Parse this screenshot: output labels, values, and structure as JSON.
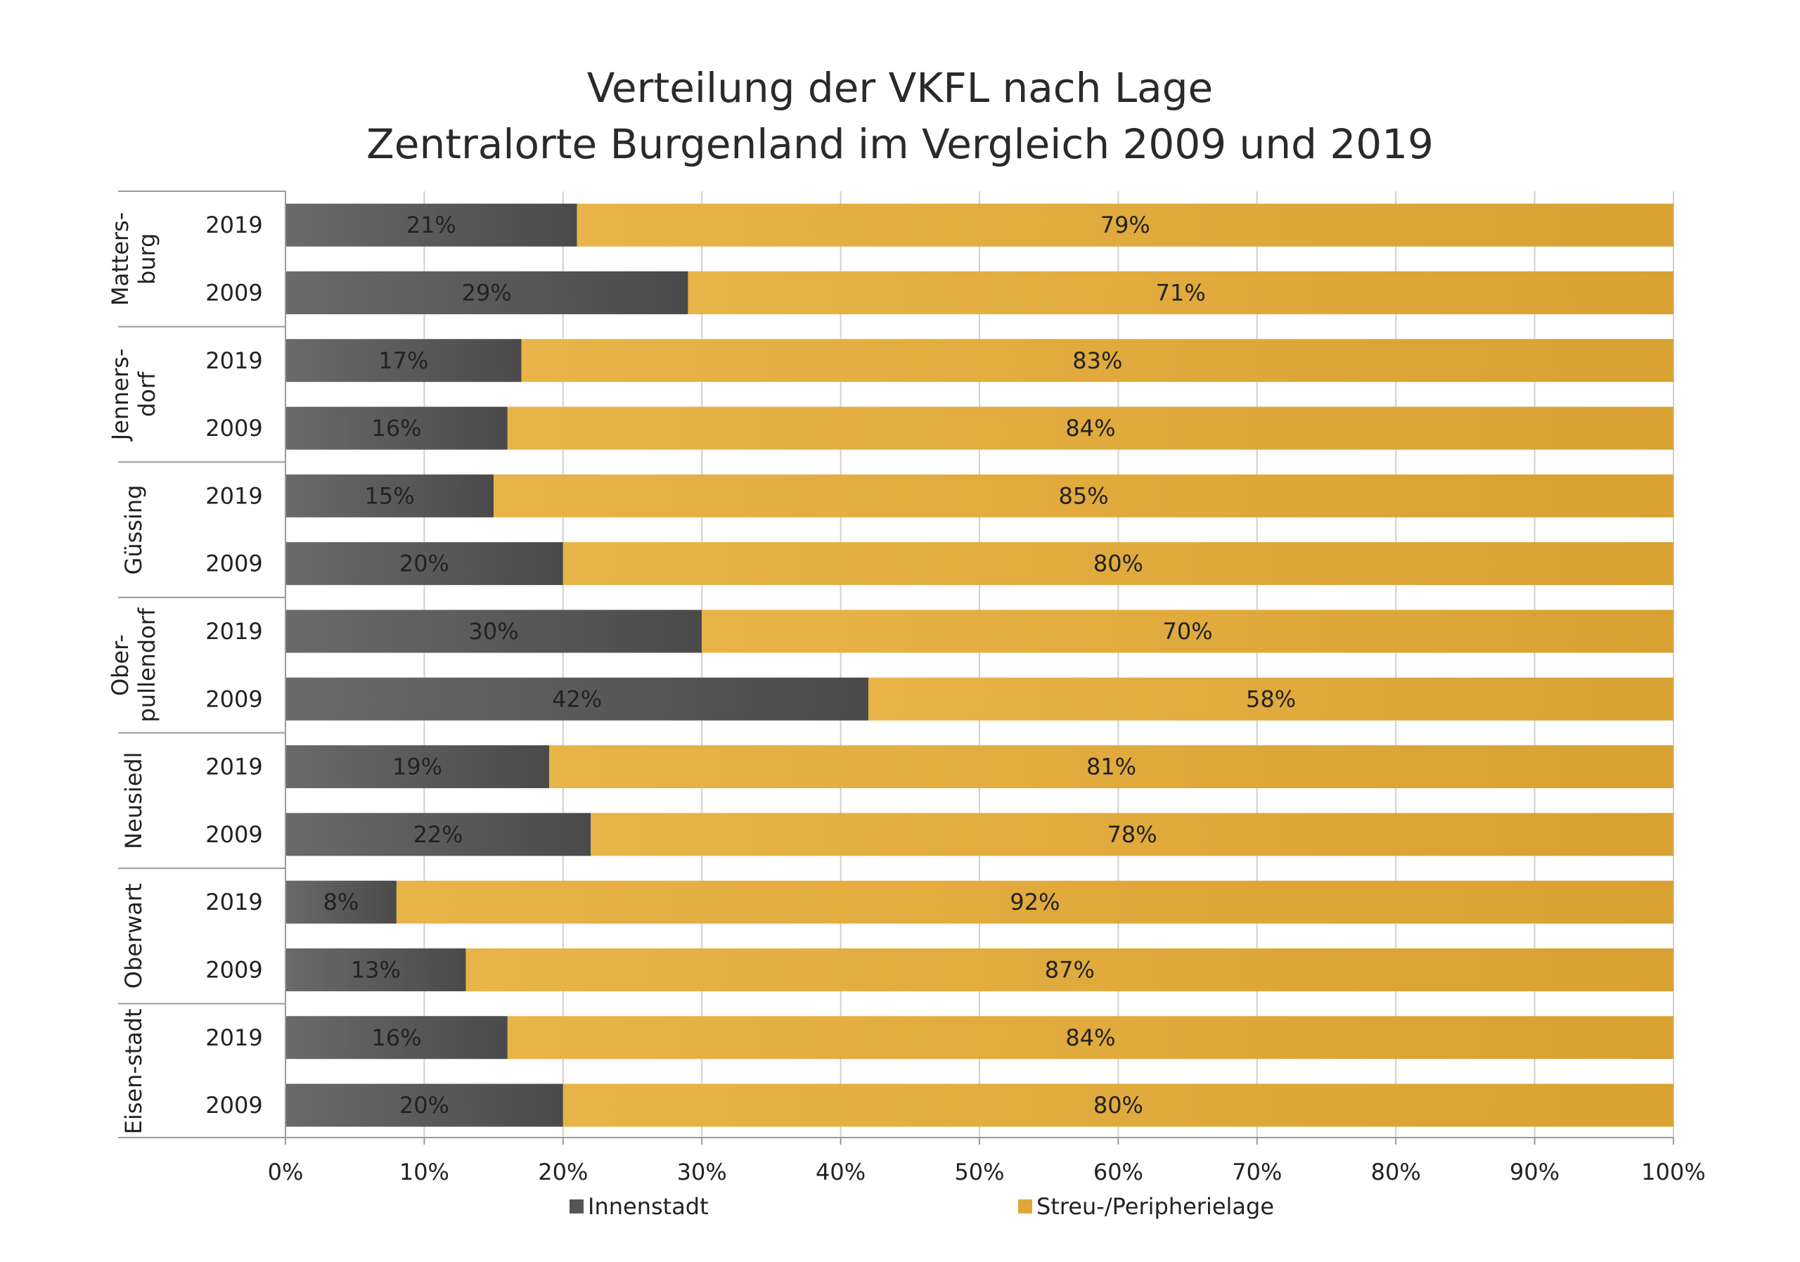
{
  "chart_data": {
    "type": "bar",
    "orientation": "horizontal",
    "stacked": true,
    "title": [
      "Verteilung der VKFL nach Lage",
      "Zentralorte Burgenland im Vergleich 2009 und 2019"
    ],
    "groups": [
      {
        "name": [
          "Matters-",
          "burg"
        ],
        "rows": [
          {
            "year": "2019",
            "innen": 21,
            "streu": 79
          },
          {
            "year": "2009",
            "innen": 29,
            "streu": 71
          }
        ]
      },
      {
        "name": [
          "Jenners-",
          "dorf"
        ],
        "rows": [
          {
            "year": "2019",
            "innen": 17,
            "streu": 83
          },
          {
            "year": "2009",
            "innen": 16,
            "streu": 84
          }
        ]
      },
      {
        "name": [
          "Güssing"
        ],
        "rows": [
          {
            "year": "2019",
            "innen": 15,
            "streu": 85
          },
          {
            "year": "2009",
            "innen": 20,
            "streu": 80
          }
        ]
      },
      {
        "name": [
          "Ober-",
          "pullendorf"
        ],
        "rows": [
          {
            "year": "2019",
            "innen": 30,
            "streu": 70
          },
          {
            "year": "2009",
            "innen": 42,
            "streu": 58
          }
        ]
      },
      {
        "name": [
          "Neusiedl"
        ],
        "rows": [
          {
            "year": "2019",
            "innen": 19,
            "streu": 81
          },
          {
            "year": "2009",
            "innen": 22,
            "streu": 78
          }
        ]
      },
      {
        "name": [
          "Oberwart"
        ],
        "rows": [
          {
            "year": "2019",
            "innen": 8,
            "streu": 92
          },
          {
            "year": "2009",
            "innen": 13,
            "streu": 87
          }
        ]
      },
      {
        "name": [
          "Eisen-stadt"
        ],
        "rows": [
          {
            "year": "2019",
            "innen": 16,
            "streu": 84
          },
          {
            "year": "2009",
            "innen": 20,
            "streu": 80
          }
        ]
      }
    ],
    "series": [
      {
        "key": "innen",
        "name": "Innenstadt",
        "color": "#555555"
      },
      {
        "key": "streu",
        "name": "Streu-/Peripherielage",
        "color": "#e0a63a"
      }
    ],
    "xlim": [
      0,
      100
    ],
    "xticks": [
      0,
      10,
      20,
      30,
      40,
      50,
      60,
      70,
      80,
      90,
      100
    ],
    "tick_suffix": "%",
    "grid": true,
    "legend": "bottom"
  }
}
